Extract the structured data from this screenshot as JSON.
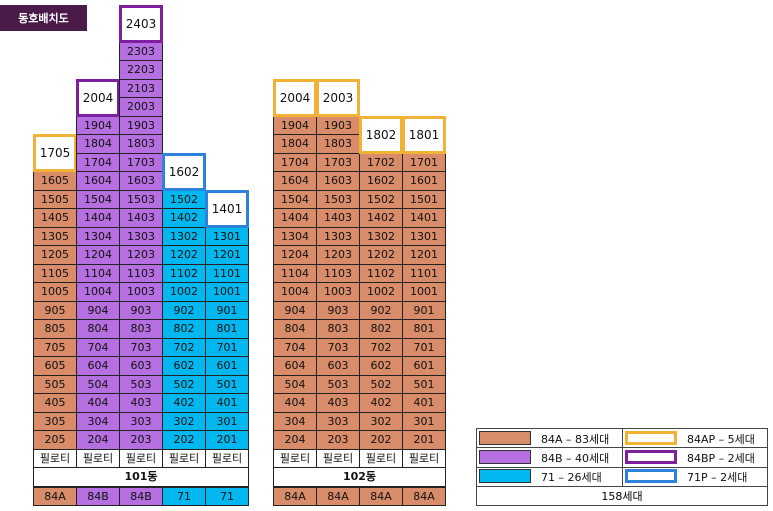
{
  "title": "동호배치도",
  "pilotis_label": "필로티",
  "colors": {
    "84A": "#d98c6a",
    "84B": "#b56fe0",
    "71": "#00b8ef",
    "84AP": "#f1b236",
    "84BP": "#7e1fa0",
    "71P": "#2d82dd"
  },
  "buildings": [
    {
      "name": "101동",
      "columns": [
        {
          "type_label": "84A",
          "units": [
            {
              "label": "205",
              "type": "84A"
            },
            {
              "label": "305",
              "type": "84A"
            },
            {
              "label": "405",
              "type": "84A"
            },
            {
              "label": "505",
              "type": "84A"
            },
            {
              "label": "605",
              "type": "84A"
            },
            {
              "label": "705",
              "type": "84A"
            },
            {
              "label": "805",
              "type": "84A"
            },
            {
              "label": "905",
              "type": "84A"
            },
            {
              "label": "1005",
              "type": "84A"
            },
            {
              "label": "1105",
              "type": "84A"
            },
            {
              "label": "1205",
              "type": "84A"
            },
            {
              "label": "1305",
              "type": "84A"
            },
            {
              "label": "1405",
              "type": "84A"
            },
            {
              "label": "1505",
              "type": "84A"
            },
            {
              "label": "1605",
              "type": "84A"
            },
            {
              "label": "1705",
              "type": "84AP",
              "span": 2
            }
          ]
        },
        {
          "type_label": "84B",
          "units": [
            {
              "label": "204",
              "type": "84B"
            },
            {
              "label": "304",
              "type": "84B"
            },
            {
              "label": "404",
              "type": "84B"
            },
            {
              "label": "504",
              "type": "84B"
            },
            {
              "label": "604",
              "type": "84B"
            },
            {
              "label": "704",
              "type": "84B"
            },
            {
              "label": "804",
              "type": "84B"
            },
            {
              "label": "904",
              "type": "84B"
            },
            {
              "label": "1004",
              "type": "84B"
            },
            {
              "label": "1104",
              "type": "84B"
            },
            {
              "label": "1204",
              "type": "84B"
            },
            {
              "label": "1304",
              "type": "84B"
            },
            {
              "label": "1404",
              "type": "84B"
            },
            {
              "label": "1504",
              "type": "84B"
            },
            {
              "label": "1604",
              "type": "84B"
            },
            {
              "label": "1704",
              "type": "84B"
            },
            {
              "label": "1804",
              "type": "84B"
            },
            {
              "label": "1904",
              "type": "84B"
            },
            {
              "label": "2004",
              "type": "84BP",
              "span": 2
            }
          ]
        },
        {
          "type_label": "84B",
          "units": [
            {
              "label": "203",
              "type": "84B"
            },
            {
              "label": "303",
              "type": "84B"
            },
            {
              "label": "403",
              "type": "84B"
            },
            {
              "label": "503",
              "type": "84B"
            },
            {
              "label": "603",
              "type": "84B"
            },
            {
              "label": "703",
              "type": "84B"
            },
            {
              "label": "803",
              "type": "84B"
            },
            {
              "label": "903",
              "type": "84B"
            },
            {
              "label": "1003",
              "type": "84B"
            },
            {
              "label": "1103",
              "type": "84B"
            },
            {
              "label": "1203",
              "type": "84B"
            },
            {
              "label": "1303",
              "type": "84B"
            },
            {
              "label": "1403",
              "type": "84B"
            },
            {
              "label": "1503",
              "type": "84B"
            },
            {
              "label": "1603",
              "type": "84B"
            },
            {
              "label": "1703",
              "type": "84B"
            },
            {
              "label": "1803",
              "type": "84B"
            },
            {
              "label": "1903",
              "type": "84B"
            },
            {
              "label": "2003",
              "type": "84B"
            },
            {
              "label": "2103",
              "type": "84B"
            },
            {
              "label": "2203",
              "type": "84B"
            },
            {
              "label": "2303",
              "type": "84B"
            },
            {
              "label": "2403",
              "type": "84BP",
              "span": 2
            }
          ]
        },
        {
          "type_label": "71",
          "units": [
            {
              "label": "202",
              "type": "71"
            },
            {
              "label": "302",
              "type": "71"
            },
            {
              "label": "402",
              "type": "71"
            },
            {
              "label": "502",
              "type": "71"
            },
            {
              "label": "602",
              "type": "71"
            },
            {
              "label": "702",
              "type": "71"
            },
            {
              "label": "802",
              "type": "71"
            },
            {
              "label": "902",
              "type": "71"
            },
            {
              "label": "1002",
              "type": "71"
            },
            {
              "label": "1102",
              "type": "71"
            },
            {
              "label": "1202",
              "type": "71"
            },
            {
              "label": "1302",
              "type": "71"
            },
            {
              "label": "1402",
              "type": "71"
            },
            {
              "label": "1502",
              "type": "71"
            },
            {
              "label": "1602",
              "type": "71P",
              "span": 2
            }
          ]
        },
        {
          "type_label": "71",
          "units": [
            {
              "label": "201",
              "type": "71"
            },
            {
              "label": "301",
              "type": "71"
            },
            {
              "label": "401",
              "type": "71"
            },
            {
              "label": "501",
              "type": "71"
            },
            {
              "label": "601",
              "type": "71"
            },
            {
              "label": "701",
              "type": "71"
            },
            {
              "label": "801",
              "type": "71"
            },
            {
              "label": "901",
              "type": "71"
            },
            {
              "label": "1001",
              "type": "71"
            },
            {
              "label": "1101",
              "type": "71"
            },
            {
              "label": "1201",
              "type": "71"
            },
            {
              "label": "1301",
              "type": "71"
            },
            {
              "label": "1401",
              "type": "71P",
              "span": 2
            }
          ]
        }
      ]
    },
    {
      "name": "102동",
      "columns": [
        {
          "type_label": "84A",
          "units": [
            {
              "label": "204",
              "type": "84A"
            },
            {
              "label": "304",
              "type": "84A"
            },
            {
              "label": "404",
              "type": "84A"
            },
            {
              "label": "504",
              "type": "84A"
            },
            {
              "label": "604",
              "type": "84A"
            },
            {
              "label": "704",
              "type": "84A"
            },
            {
              "label": "804",
              "type": "84A"
            },
            {
              "label": "904",
              "type": "84A"
            },
            {
              "label": "1004",
              "type": "84A"
            },
            {
              "label": "1104",
              "type": "84A"
            },
            {
              "label": "1204",
              "type": "84A"
            },
            {
              "label": "1304",
              "type": "84A"
            },
            {
              "label": "1404",
              "type": "84A"
            },
            {
              "label": "1504",
              "type": "84A"
            },
            {
              "label": "1604",
              "type": "84A"
            },
            {
              "label": "1704",
              "type": "84A"
            },
            {
              "label": "1804",
              "type": "84A"
            },
            {
              "label": "1904",
              "type": "84A"
            },
            {
              "label": "2004",
              "type": "84AP",
              "span": 2
            }
          ]
        },
        {
          "type_label": "84A",
          "units": [
            {
              "label": "203",
              "type": "84A"
            },
            {
              "label": "303",
              "type": "84A"
            },
            {
              "label": "403",
              "type": "84A"
            },
            {
              "label": "503",
              "type": "84A"
            },
            {
              "label": "603",
              "type": "84A"
            },
            {
              "label": "703",
              "type": "84A"
            },
            {
              "label": "803",
              "type": "84A"
            },
            {
              "label": "903",
              "type": "84A"
            },
            {
              "label": "1003",
              "type": "84A"
            },
            {
              "label": "1103",
              "type": "84A"
            },
            {
              "label": "1203",
              "type": "84A"
            },
            {
              "label": "1303",
              "type": "84A"
            },
            {
              "label": "1403",
              "type": "84A"
            },
            {
              "label": "1503",
              "type": "84A"
            },
            {
              "label": "1603",
              "type": "84A"
            },
            {
              "label": "1703",
              "type": "84A"
            },
            {
              "label": "1803",
              "type": "84A"
            },
            {
              "label": "1903",
              "type": "84A"
            },
            {
              "label": "2003",
              "type": "84AP",
              "span": 2
            }
          ]
        },
        {
          "type_label": "84A",
          "units": [
            {
              "label": "202",
              "type": "84A"
            },
            {
              "label": "302",
              "type": "84A"
            },
            {
              "label": "402",
              "type": "84A"
            },
            {
              "label": "502",
              "type": "84A"
            },
            {
              "label": "602",
              "type": "84A"
            },
            {
              "label": "702",
              "type": "84A"
            },
            {
              "label": "802",
              "type": "84A"
            },
            {
              "label": "902",
              "type": "84A"
            },
            {
              "label": "1002",
              "type": "84A"
            },
            {
              "label": "1102",
              "type": "84A"
            },
            {
              "label": "1202",
              "type": "84A"
            },
            {
              "label": "1302",
              "type": "84A"
            },
            {
              "label": "1402",
              "type": "84A"
            },
            {
              "label": "1502",
              "type": "84A"
            },
            {
              "label": "1602",
              "type": "84A"
            },
            {
              "label": "1702",
              "type": "84A"
            },
            {
              "label": "1802",
              "type": "84AP",
              "span": 2
            }
          ]
        },
        {
          "type_label": "84A",
          "units": [
            {
              "label": "201",
              "type": "84A"
            },
            {
              "label": "301",
              "type": "84A"
            },
            {
              "label": "401",
              "type": "84A"
            },
            {
              "label": "501",
              "type": "84A"
            },
            {
              "label": "601",
              "type": "84A"
            },
            {
              "label": "701",
              "type": "84A"
            },
            {
              "label": "801",
              "type": "84A"
            },
            {
              "label": "901",
              "type": "84A"
            },
            {
              "label": "1001",
              "type": "84A"
            },
            {
              "label": "1101",
              "type": "84A"
            },
            {
              "label": "1201",
              "type": "84A"
            },
            {
              "label": "1301",
              "type": "84A"
            },
            {
              "label": "1401",
              "type": "84A"
            },
            {
              "label": "1501",
              "type": "84A"
            },
            {
              "label": "1601",
              "type": "84A"
            },
            {
              "label": "1701",
              "type": "84A"
            },
            {
              "label": "1801",
              "type": "84AP",
              "span": 2
            }
          ]
        }
      ]
    }
  ],
  "legend": {
    "items": [
      {
        "type": "84A",
        "label": "84A – 83세대"
      },
      {
        "type": "84AP",
        "label": "84AP – 5세대"
      },
      {
        "type": "84B",
        "label": "84B – 40세대"
      },
      {
        "type": "84BP",
        "label": "84BP – 2세대"
      },
      {
        "type": "71",
        "label": "71   – 26세대"
      },
      {
        "type": "71P",
        "label": "71P   – 2세대"
      }
    ],
    "total": "158세대"
  }
}
